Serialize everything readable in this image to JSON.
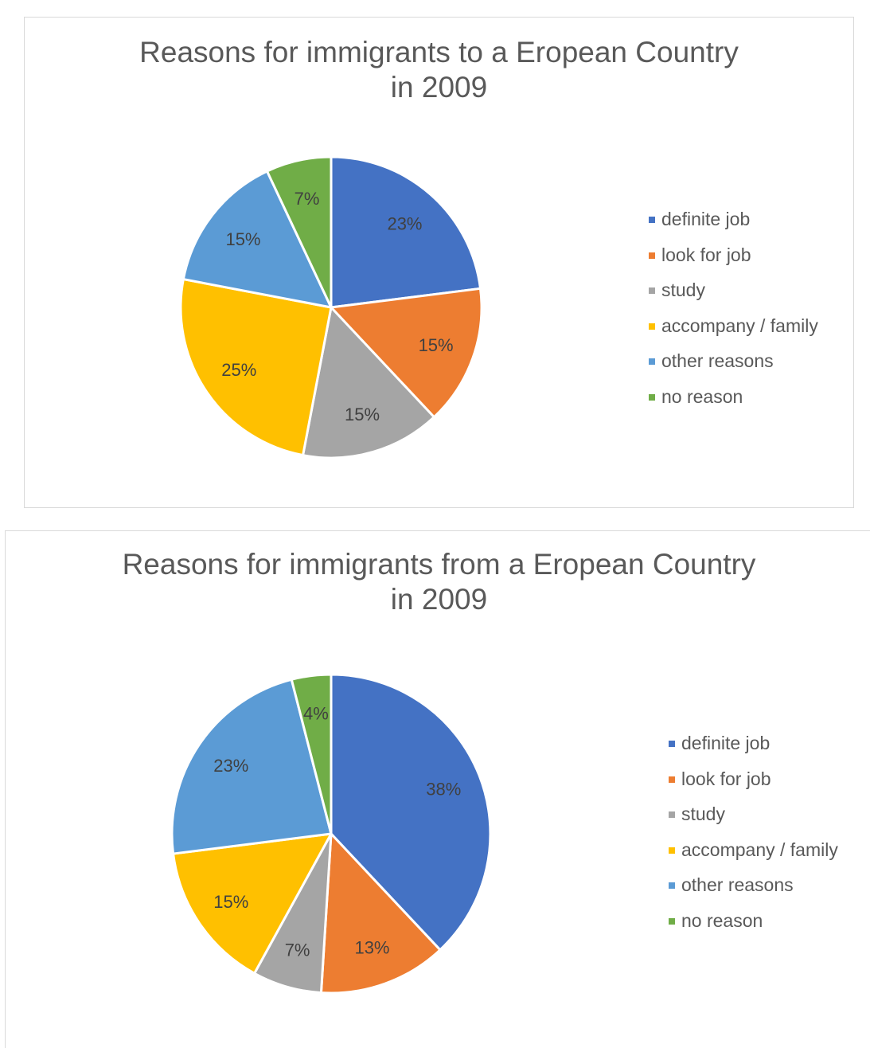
{
  "colors": {
    "definite_job": "#4472c4",
    "look_for_job": "#ed7d31",
    "study": "#a5a5a5",
    "accompany_family": "#ffc000",
    "other_reasons": "#5b9bd5",
    "no_reason": "#70ad47"
  },
  "chart_data": [
    {
      "type": "pie",
      "title_lines": [
        "Reasons for immigrants to a Eropean Country",
        "in 2009"
      ],
      "categories": [
        "definite job",
        "look for job",
        "study",
        "accompany / family",
        "other reasons",
        "no reason"
      ],
      "values": [
        23,
        15,
        15,
        25,
        15,
        7
      ],
      "data_labels": [
        "23%",
        "15%",
        "15%",
        "25%",
        "15%",
        "7%"
      ],
      "legend_position": "right"
    },
    {
      "type": "pie",
      "title_lines": [
        "Reasons for immigrants from a Eropean Country",
        "in 2009"
      ],
      "categories": [
        "definite job",
        "look for job",
        "study",
        "accompany / family",
        "other reasons",
        "no reason"
      ],
      "values": [
        38,
        13,
        7,
        15,
        23,
        4
      ],
      "data_labels": [
        "38%",
        "13%",
        "7%",
        "15%",
        "23%",
        "4%"
      ],
      "legend_position": "right"
    }
  ]
}
